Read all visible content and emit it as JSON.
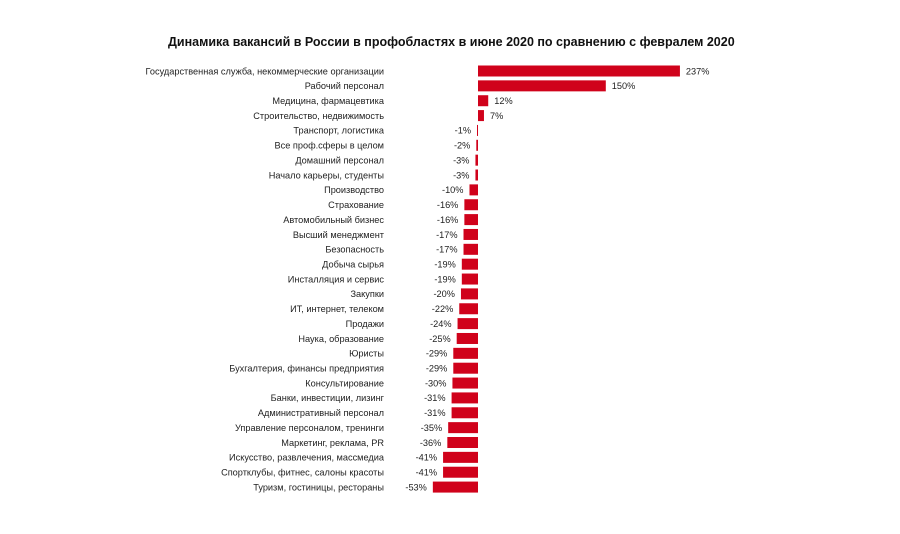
{
  "chart_data": {
    "type": "bar",
    "orientation": "horizontal",
    "title": "Динамика вакансий в России в профобластях в июне 2020 по сравнению с февралем 2020",
    "xlabel": "",
    "ylabel": "",
    "grid": false,
    "value_suffix": "%",
    "color": "#d0021b",
    "categories": [
      "Государственная служба, некоммерческие организации",
      "Рабочий персонал",
      "Медицина, фармацевтика",
      "Строительство, недвижимость",
      "Транспорт, логистика",
      "Все проф.сферы в целом",
      "Домашний персонал",
      "Начало карьеры, студенты",
      "Производство",
      "Страхование",
      "Автомобильный бизнес",
      "Высший менеджмент",
      "Безопасность",
      "Добыча сырья",
      "Инсталляция и сервис",
      "Закупки",
      "ИТ, интернет, телеком",
      "Продажи",
      "Наука, образование",
      "Юристы",
      "Бухгалтерия, финансы предприятия",
      "Консультирование",
      "Банки, инвестиции, лизинг",
      "Административный персонал",
      "Управление персоналом, тренинги",
      "Маркетинг, реклама, PR",
      "Искусство, развлечения, массмедиа",
      "Спортклубы, фитнес, салоны красоты",
      "Туризм, гостиницы, рестораны"
    ],
    "values": [
      237,
      150,
      12,
      7,
      -1,
      -2,
      -3,
      -3,
      -10,
      -16,
      -16,
      -17,
      -17,
      -19,
      -19,
      -20,
      -22,
      -24,
      -25,
      -29,
      -29,
      -30,
      -31,
      -31,
      -35,
      -36,
      -41,
      -41,
      -53
    ]
  }
}
